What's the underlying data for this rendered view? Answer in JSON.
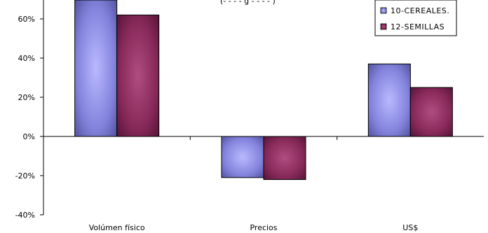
{
  "chart_data": {
    "type": "bar",
    "title_fragment": "(- - - - g - - - - )",
    "categories": [
      "Volúmen físico",
      "Precios",
      "US$"
    ],
    "series": [
      {
        "name": "10-CEREALES.",
        "values": [
          72,
          -21,
          37
        ],
        "color": "#7f7fe0"
      },
      {
        "name": "12-SEMILLAS",
        "values": [
          62,
          -22,
          25
        ],
        "color": "#8e2a5e"
      }
    ],
    "ylim": [
      -40,
      70
    ],
    "y_ticks": [
      -40,
      -20,
      0,
      20,
      40,
      60
    ],
    "y_tick_labels": [
      "-40%",
      "-20%",
      "0%",
      "20%",
      "40%",
      "60%"
    ],
    "legend_position": "top-right",
    "grid": false
  }
}
